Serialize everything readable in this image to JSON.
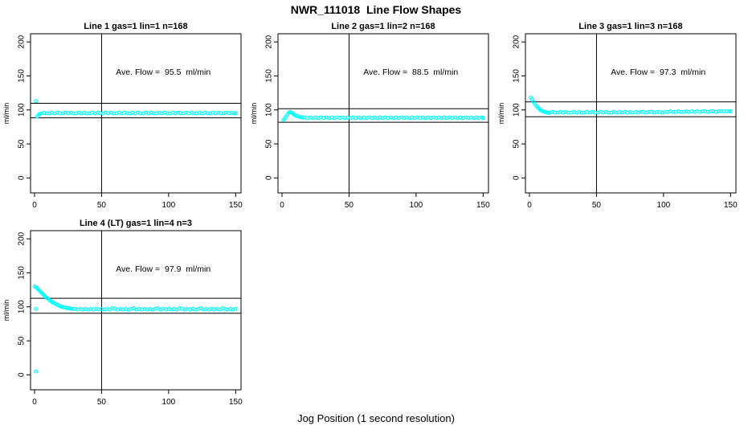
{
  "title": "NWR_111018  Line Flow Shapes",
  "xlabel": "Jog Position (1 second resolution)",
  "ylabel": "ml/min",
  "colors": {
    "point": "#00FFFF",
    "line": "#000000",
    "background": "#FFFFFF"
  },
  "axes": {
    "xticks": [
      0,
      50,
      100,
      150
    ],
    "yticks": [
      0,
      50,
      100,
      150,
      200
    ],
    "xlim": [
      -3,
      154
    ],
    "ylim": [
      -22,
      212
    ],
    "grid": false
  },
  "marker": {
    "shape": "open-circle",
    "color": "#00FFFF"
  },
  "chart_data": [
    {
      "type": "scatter",
      "title": "Line 1 gas=1 lin=1 n=168",
      "annotation": "Ave. Flow =  95.5  ml/min",
      "ave_flow": 95.5,
      "n": 168,
      "vline_x": 50,
      "hlines": [
        109.8,
        88.3
      ],
      "annotation_pos": [
        96,
        155
      ],
      "points": [
        [
          1,
          113
        ],
        [
          2,
          90
        ],
        [
          3,
          93
        ],
        [
          4,
          94
        ],
        [
          5,
          95
        ],
        [
          7,
          96
        ],
        [
          9,
          95
        ],
        [
          11,
          95
        ],
        [
          13,
          96
        ],
        [
          15,
          95
        ],
        [
          17,
          96
        ],
        [
          19,
          95
        ],
        [
          21,
          95
        ],
        [
          23,
          96
        ],
        [
          25,
          95
        ],
        [
          27,
          96
        ],
        [
          29,
          95
        ],
        [
          31,
          95
        ],
        [
          33,
          96
        ],
        [
          35,
          95
        ],
        [
          37,
          96
        ],
        [
          39,
          95
        ],
        [
          41,
          95
        ],
        [
          43,
          96
        ],
        [
          45,
          95
        ],
        [
          47,
          96
        ],
        [
          49,
          95
        ],
        [
          51,
          95
        ],
        [
          53,
          96
        ],
        [
          55,
          95
        ],
        [
          57,
          96
        ],
        [
          59,
          95
        ],
        [
          61,
          95
        ],
        [
          63,
          96
        ],
        [
          65,
          95
        ],
        [
          67,
          96
        ],
        [
          69,
          95
        ],
        [
          71,
          95
        ],
        [
          73,
          96
        ],
        [
          75,
          95
        ],
        [
          77,
          96
        ],
        [
          79,
          95
        ],
        [
          81,
          95
        ],
        [
          83,
          96
        ],
        [
          85,
          95
        ],
        [
          87,
          96
        ],
        [
          89,
          95
        ],
        [
          91,
          95
        ],
        [
          93,
          96
        ],
        [
          95,
          95
        ],
        [
          97,
          96
        ],
        [
          99,
          95
        ],
        [
          101,
          95
        ],
        [
          103,
          96
        ],
        [
          105,
          95
        ],
        [
          107,
          96
        ],
        [
          109,
          95
        ],
        [
          111,
          95
        ],
        [
          113,
          96
        ],
        [
          115,
          95
        ],
        [
          117,
          96
        ],
        [
          119,
          95
        ],
        [
          121,
          95
        ],
        [
          123,
          96
        ],
        [
          125,
          95
        ],
        [
          127,
          96
        ],
        [
          129,
          95
        ],
        [
          131,
          95
        ],
        [
          133,
          96
        ],
        [
          135,
          95
        ],
        [
          137,
          96
        ],
        [
          139,
          95
        ],
        [
          141,
          95
        ],
        [
          143,
          96
        ],
        [
          145,
          95
        ],
        [
          147,
          96
        ],
        [
          149,
          95
        ],
        [
          150,
          95
        ]
      ]
    },
    {
      "type": "scatter",
      "title": "Line 2 gas=1 lin=2 n=168",
      "annotation": "Ave. Flow =  88.5  ml/min",
      "ave_flow": 88.5,
      "n": 168,
      "vline_x": 50,
      "hlines": [
        101.8,
        81.9
      ],
      "annotation_pos": [
        96,
        155
      ],
      "points": [
        [
          1,
          85
        ],
        [
          2,
          87
        ],
        [
          3,
          90
        ],
        [
          4,
          93
        ],
        [
          5,
          96
        ],
        [
          6,
          97
        ],
        [
          7,
          96
        ],
        [
          8,
          95
        ],
        [
          9,
          93
        ],
        [
          10,
          92
        ],
        [
          11,
          91
        ],
        [
          12,
          90
        ],
        [
          13,
          90
        ],
        [
          14,
          89
        ],
        [
          15,
          89
        ],
        [
          17,
          89
        ],
        [
          19,
          88
        ],
        [
          21,
          89
        ],
        [
          23,
          88
        ],
        [
          25,
          89
        ],
        [
          27,
          88
        ],
        [
          29,
          89
        ],
        [
          31,
          88
        ],
        [
          33,
          89
        ],
        [
          35,
          88
        ],
        [
          37,
          89
        ],
        [
          39,
          88
        ],
        [
          41,
          89
        ],
        [
          43,
          88
        ],
        [
          45,
          89
        ],
        [
          47,
          88
        ],
        [
          49,
          89
        ],
        [
          51,
          88
        ],
        [
          53,
          89
        ],
        [
          55,
          88
        ],
        [
          57,
          89
        ],
        [
          59,
          88
        ],
        [
          61,
          89
        ],
        [
          63,
          88
        ],
        [
          65,
          89
        ],
        [
          67,
          88
        ],
        [
          69,
          89
        ],
        [
          71,
          88
        ],
        [
          73,
          89
        ],
        [
          75,
          88
        ],
        [
          77,
          89
        ],
        [
          79,
          88
        ],
        [
          81,
          89
        ],
        [
          83,
          88
        ],
        [
          85,
          89
        ],
        [
          87,
          88
        ],
        [
          89,
          89
        ],
        [
          91,
          88
        ],
        [
          93,
          89
        ],
        [
          95,
          88
        ],
        [
          97,
          89
        ],
        [
          99,
          88
        ],
        [
          101,
          89
        ],
        [
          103,
          88
        ],
        [
          105,
          89
        ],
        [
          107,
          88
        ],
        [
          109,
          89
        ],
        [
          111,
          88
        ],
        [
          113,
          89
        ],
        [
          115,
          88
        ],
        [
          117,
          89
        ],
        [
          119,
          88
        ],
        [
          121,
          89
        ],
        [
          123,
          88
        ],
        [
          125,
          89
        ],
        [
          127,
          88
        ],
        [
          129,
          89
        ],
        [
          131,
          88
        ],
        [
          133,
          89
        ],
        [
          135,
          88
        ],
        [
          137,
          89
        ],
        [
          139,
          88
        ],
        [
          141,
          89
        ],
        [
          143,
          88
        ],
        [
          145,
          89
        ],
        [
          147,
          88
        ],
        [
          149,
          89
        ],
        [
          150,
          88
        ]
      ]
    },
    {
      "type": "scatter",
      "title": "Line 3 gas=1 lin=3 n=168",
      "annotation": "Ave. Flow =  97.3  ml/min",
      "ave_flow": 97.3,
      "n": 168,
      "vline_x": 50,
      "hlines": [
        111.9,
        90.0
      ],
      "annotation_pos": [
        96,
        155
      ],
      "points": [
        [
          1,
          118
        ],
        [
          2,
          115
        ],
        [
          3,
          112
        ],
        [
          4,
          109
        ],
        [
          5,
          106
        ],
        [
          6,
          104
        ],
        [
          7,
          102
        ],
        [
          8,
          100
        ],
        [
          9,
          99
        ],
        [
          10,
          98
        ],
        [
          11,
          97
        ],
        [
          12,
          97
        ],
        [
          13,
          96
        ],
        [
          14,
          96
        ],
        [
          15,
          96
        ],
        [
          17,
          97
        ],
        [
          19,
          96
        ],
        [
          21,
          96
        ],
        [
          23,
          97
        ],
        [
          25,
          96
        ],
        [
          27,
          97
        ],
        [
          29,
          96
        ],
        [
          31,
          96
        ],
        [
          33,
          97
        ],
        [
          35,
          96
        ],
        [
          37,
          97
        ],
        [
          39,
          96
        ],
        [
          41,
          96
        ],
        [
          43,
          97
        ],
        [
          45,
          96
        ],
        [
          47,
          97
        ],
        [
          49,
          96
        ],
        [
          51,
          96
        ],
        [
          53,
          97
        ],
        [
          55,
          96
        ],
        [
          57,
          97
        ],
        [
          59,
          96
        ],
        [
          61,
          96
        ],
        [
          63,
          97
        ],
        [
          65,
          96
        ],
        [
          67,
          97
        ],
        [
          69,
          96
        ],
        [
          71,
          97
        ],
        [
          73,
          96
        ],
        [
          75,
          97
        ],
        [
          77,
          96
        ],
        [
          79,
          97
        ],
        [
          81,
          96
        ],
        [
          83,
          97
        ],
        [
          85,
          97
        ],
        [
          87,
          96
        ],
        [
          89,
          97
        ],
        [
          91,
          97
        ],
        [
          93,
          96
        ],
        [
          95,
          97
        ],
        [
          97,
          97
        ],
        [
          99,
          96
        ],
        [
          101,
          97
        ],
        [
          103,
          97
        ],
        [
          105,
          98
        ],
        [
          107,
          97
        ],
        [
          109,
          97
        ],
        [
          111,
          98
        ],
        [
          113,
          97
        ],
        [
          115,
          97
        ],
        [
          117,
          98
        ],
        [
          119,
          97
        ],
        [
          121,
          98
        ],
        [
          123,
          97
        ],
        [
          125,
          98
        ],
        [
          127,
          97
        ],
        [
          129,
          98
        ],
        [
          131,
          98
        ],
        [
          133,
          97
        ],
        [
          135,
          98
        ],
        [
          137,
          98
        ],
        [
          139,
          97
        ],
        [
          141,
          98
        ],
        [
          143,
          98
        ],
        [
          145,
          98
        ],
        [
          147,
          98
        ],
        [
          149,
          98
        ],
        [
          150,
          98
        ]
      ]
    },
    {
      "type": "scatter",
      "title": "Line 4 (LT) gas=1 lin=4 n=3",
      "annotation": "Ave. Flow =  97.9  ml/min",
      "ave_flow": 97.9,
      "n": 3,
      "vline_x": 50,
      "hlines": [
        112.6,
        90.6
      ],
      "annotation_pos": [
        96,
        155
      ],
      "points": [
        [
          1,
          97
        ],
        [
          1,
          5
        ],
        [
          0,
          130
        ],
        [
          1,
          129
        ],
        [
          2,
          127
        ],
        [
          3,
          125
        ],
        [
          4,
          123
        ],
        [
          5,
          121
        ],
        [
          6,
          119
        ],
        [
          7,
          117
        ],
        [
          8,
          115
        ],
        [
          9,
          113
        ],
        [
          10,
          112
        ],
        [
          11,
          110
        ],
        [
          12,
          109
        ],
        [
          13,
          107
        ],
        [
          14,
          106
        ],
        [
          15,
          105
        ],
        [
          16,
          104
        ],
        [
          17,
          103
        ],
        [
          18,
          102
        ],
        [
          19,
          101
        ],
        [
          20,
          100
        ],
        [
          21,
          100
        ],
        [
          22,
          99
        ],
        [
          23,
          99
        ],
        [
          24,
          98
        ],
        [
          25,
          98
        ],
        [
          26,
          98
        ],
        [
          27,
          97
        ],
        [
          28,
          97
        ],
        [
          30,
          97
        ],
        [
          32,
          96
        ],
        [
          34,
          97
        ],
        [
          36,
          96
        ],
        [
          38,
          97
        ],
        [
          40,
          96
        ],
        [
          42,
          97
        ],
        [
          44,
          96
        ],
        [
          46,
          97
        ],
        [
          48,
          96
        ],
        [
          50,
          97
        ],
        [
          52,
          96
        ],
        [
          54,
          97
        ],
        [
          56,
          96
        ],
        [
          58,
          98
        ],
        [
          60,
          97
        ],
        [
          62,
          96
        ],
        [
          64,
          97
        ],
        [
          66,
          96
        ],
        [
          68,
          97
        ],
        [
          70,
          96
        ],
        [
          72,
          97
        ],
        [
          74,
          98
        ],
        [
          76,
          96
        ],
        [
          78,
          97
        ],
        [
          80,
          96
        ],
        [
          82,
          97
        ],
        [
          84,
          96
        ],
        [
          86,
          97
        ],
        [
          88,
          96
        ],
        [
          90,
          97
        ],
        [
          92,
          98
        ],
        [
          94,
          96
        ],
        [
          96,
          97
        ],
        [
          98,
          96
        ],
        [
          100,
          97
        ],
        [
          102,
          96
        ],
        [
          104,
          97
        ],
        [
          106,
          96
        ],
        [
          108,
          98
        ],
        [
          110,
          97
        ],
        [
          112,
          96
        ],
        [
          114,
          97
        ],
        [
          116,
          96
        ],
        [
          118,
          97
        ],
        [
          120,
          96
        ],
        [
          122,
          97
        ],
        [
          124,
          98
        ],
        [
          126,
          96
        ],
        [
          128,
          97
        ],
        [
          130,
          96
        ],
        [
          132,
          97
        ],
        [
          134,
          96
        ],
        [
          136,
          97
        ],
        [
          138,
          96
        ],
        [
          140,
          98
        ],
        [
          142,
          97
        ],
        [
          144,
          96
        ],
        [
          146,
          97
        ],
        [
          148,
          96
        ],
        [
          150,
          97
        ]
      ]
    }
  ]
}
